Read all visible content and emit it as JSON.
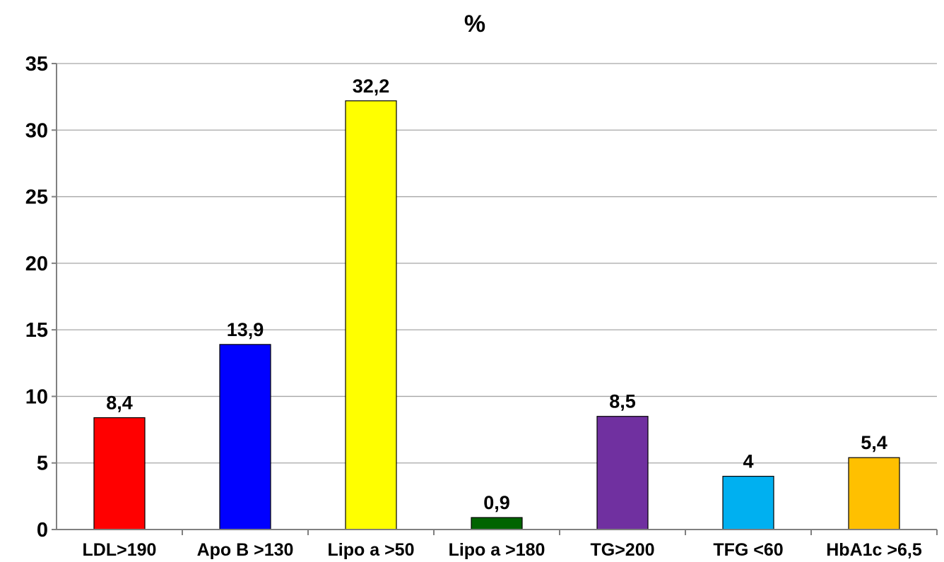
{
  "chart_data": {
    "type": "bar",
    "title": "%",
    "xlabel": "",
    "ylabel": "",
    "categories": [
      "LDL>190",
      "Apo B >130",
      "Lipo a >50",
      "Lipo a >180",
      "TG>200",
      "TFG <60",
      "HbA1c >6,5"
    ],
    "values": [
      8.4,
      13.9,
      32.2,
      0.9,
      8.5,
      4,
      5.4
    ],
    "value_labels": [
      "8,4",
      "13,9",
      "32,2",
      "0,9",
      "8,5",
      "4",
      "5,4"
    ],
    "colors": [
      "#ff0000",
      "#0000ff",
      "#ffff00",
      "#006400",
      "#7030a0",
      "#00b0f0",
      "#ffc000"
    ],
    "ylim": [
      0,
      35
    ],
    "yticks": [
      0,
      5,
      10,
      15,
      20,
      25,
      30,
      35
    ],
    "grid": true,
    "legend": "none"
  }
}
